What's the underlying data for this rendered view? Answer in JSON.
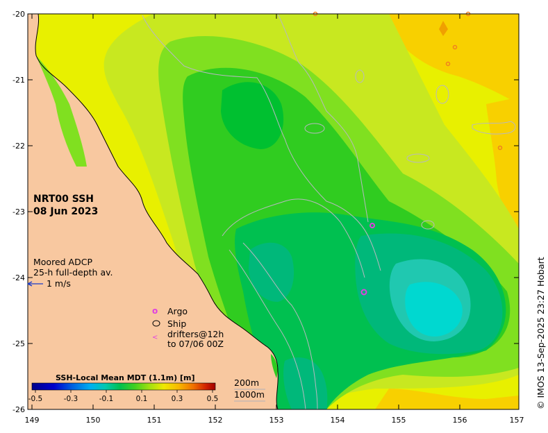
{
  "map": {
    "title_line1": "NRT00 SSH",
    "title_line2": "08 Jun 2023",
    "adcp_line1": "Moored ADCP",
    "adcp_line2": "25-h full-depth av.",
    "adcp_scale": "1 m/s",
    "legend": {
      "argo_symbol": "o",
      "argo_label": "Argo",
      "ship_label": "Ship",
      "drifter_symbol": "<",
      "drifter_line1": "drifters@12h",
      "drifter_line2": "to 07/06 00Z"
    },
    "colorbar": {
      "title": "SSH-Local Mean MDT (1.1m) [m]",
      "ticks": [
        "-0.5",
        "-0.3",
        "-0.1",
        "0.1",
        "0.3",
        "0.5"
      ],
      "colors": [
        "#00008b",
        "#0000cd",
        "#0050e0",
        "#00a0f0",
        "#00c8d8",
        "#00c8a0",
        "#00b86a",
        "#00c040",
        "#20d020",
        "#80e020",
        "#c8e800",
        "#f0e800",
        "#f8c800",
        "#f8a000",
        "#f06000",
        "#d02000",
        "#a00000"
      ]
    },
    "bathymetry_legend": {
      "label_200": "200m",
      "label_1000": "1000m"
    },
    "lat_ticks": [
      "-20",
      "-21",
      "-22",
      "-23",
      "-24",
      "-25",
      "-26"
    ],
    "lon_ticks": [
      "149",
      "150",
      "151",
      "152",
      "153",
      "154",
      "155",
      "156",
      "157"
    ],
    "credit": "© IMOS 13-Sep-2025 23:27 Hobart",
    "colors": {
      "land": "#f8c8a0",
      "yellow": "#e8f000",
      "yellow_green": "#c0e820",
      "light_green": "#80e020",
      "green": "#30cc20",
      "mid_green": "#00c030",
      "teal": "#00b87a",
      "cyan": "#00d0c8",
      "orange": "#f8d000",
      "argo_marker": "#e040e0"
    }
  }
}
